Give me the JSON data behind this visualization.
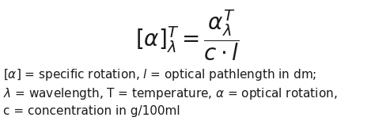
{
  "formula": "$[\\alpha]_{\\lambda}^{T} = \\dfrac{\\alpha_{\\lambda}^{T}}{c \\cdot l}$",
  "line1_parts": [
    [
      "$[\\alpha]$",
      "italic"
    ],
    [
      " = specific rotation, ",
      "normal"
    ],
    [
      "$l$",
      "italic"
    ],
    [
      " = optical pathlength in dm;",
      "normal"
    ]
  ],
  "line2_parts": [
    [
      "$\\lambda$",
      "italic"
    ],
    [
      " = wavelength,  T = temperature,  ",
      "normal"
    ],
    [
      "$\\alpha$",
      "italic"
    ],
    [
      " = optical rotation,",
      "normal"
    ]
  ],
  "line3": "c = concentration in g/100ml",
  "bg_color": "#ffffff",
  "text_color": "#1a1a1a",
  "formula_fontsize": 20,
  "text_fontsize": 11
}
